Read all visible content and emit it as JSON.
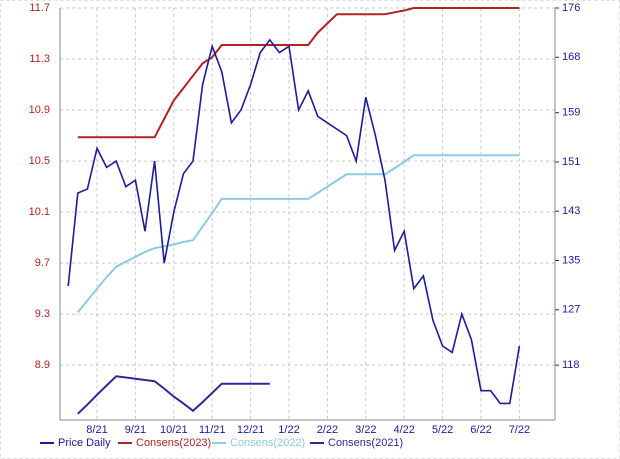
{
  "chart_data": {
    "type": "line",
    "categories": [
      null,
      null,
      null,
      "8/21",
      null,
      null,
      null,
      "9/21",
      null,
      null,
      null,
      "10/21",
      null,
      null,
      null,
      "11/21",
      null,
      null,
      null,
      "12/21",
      null,
      null,
      null,
      "1/22",
      null,
      null,
      null,
      "2/22",
      null,
      null,
      null,
      "3/22",
      null,
      null,
      null,
      "4/22",
      null,
      null,
      null,
      "5/22",
      null,
      null,
      null,
      "6/22",
      null,
      null,
      null,
      "7/22"
    ],
    "series": [
      {
        "name": "Price Daily",
        "color": "#1c1c9c",
        "values": [
          9.52,
          10.25,
          10.28,
          10.6,
          10.45,
          10.5,
          10.3,
          10.35,
          9.95,
          10.5,
          9.7,
          10.1,
          10.4,
          10.5,
          11.1,
          11.4,
          11.2,
          10.8,
          10.9,
          11.1,
          11.35,
          11.45,
          11.35,
          11.4,
          10.9,
          11.05,
          10.85,
          10.8,
          10.75,
          10.7,
          10.5,
          11.0,
          10.7,
          10.35,
          9.8,
          9.95,
          9.5,
          9.6,
          9.25,
          9.05,
          9.0,
          9.3,
          9.1,
          8.7,
          8.7,
          8.6,
          8.6,
          9.05
        ]
      },
      {
        "name": "Consens(2023)",
        "color": "#b22222",
        "axis": "y2",
        "values": [
          null,
          155,
          155,
          155,
          155,
          155,
          155,
          155,
          155,
          155,
          158,
          161,
          163,
          165,
          167,
          168,
          170,
          170,
          170,
          170,
          170,
          170,
          170,
          170,
          170,
          170,
          172,
          173.5,
          175,
          175,
          175,
          175,
          175,
          175,
          175.3,
          175.6,
          176,
          176,
          176,
          176,
          176,
          176,
          176,
          176,
          176,
          176,
          176,
          176
        ]
      },
      {
        "name": "Consens(2022)",
        "color": "#8ccbe0",
        "axis": "y2",
        "values": [
          null,
          126.6,
          128.5,
          130.4,
          132.3,
          134,
          134.8,
          135.6,
          136.4,
          137,
          137.3,
          137.6,
          138,
          138.3,
          140.5,
          142.7,
          145,
          145,
          145,
          145,
          145,
          145,
          145,
          145,
          145,
          145,
          146,
          147,
          148,
          149,
          149,
          149,
          149,
          149,
          150,
          151,
          152.1,
          152.1,
          152.1,
          152.1,
          152.1,
          152.1,
          152.1,
          152.1,
          152.1,
          152.1,
          152.1,
          152.1
        ]
      },
      {
        "name": "Consens(2021)",
        "color": "#2a2a9a",
        "axis": "y2",
        "values": [
          null,
          110.1,
          111.6,
          113.2,
          114.7,
          116.2,
          116,
          115.8,
          115.6,
          115.4,
          114.2,
          112.9,
          111.8,
          110.6,
          112,
          113.5,
          115,
          115,
          115,
          115,
          115,
          115,
          null,
          null,
          null,
          null,
          null,
          null,
          null,
          null,
          null,
          null,
          null,
          null,
          null,
          null,
          null,
          null,
          null,
          null,
          null,
          null,
          null,
          null,
          null,
          null,
          null,
          null
        ]
      }
    ],
    "ylim": [
      8.47,
      11.7
    ],
    "yticks": [
      8.9,
      9.3,
      9.7,
      10.1,
      10.5,
      10.9,
      11.3,
      11.7
    ],
    "y2lim": [
      109.1,
      176
    ],
    "y2ticks": [
      118,
      127,
      135,
      143,
      151,
      159,
      168,
      176
    ],
    "grid": true
  }
}
